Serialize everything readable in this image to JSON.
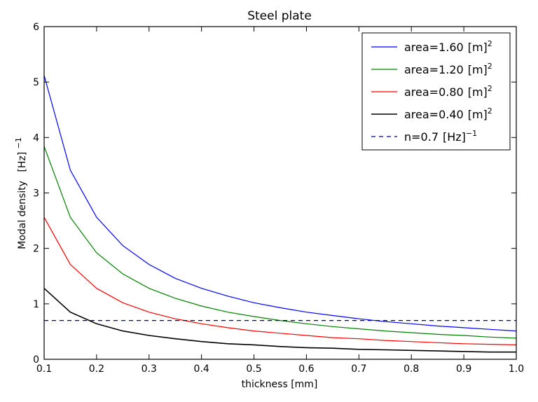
{
  "chart_data": {
    "type": "line",
    "title": "Steel plate",
    "xlabel": "thickness [mm]",
    "ylabel": "Modal density",
    "ylabel_unit": "[Hz]",
    "ylabel_unit_sup": "−1",
    "xlim": [
      0.1,
      1.0
    ],
    "ylim": [
      0,
      6
    ],
    "x_ticks": [
      "0.1",
      "0.2",
      "0.3",
      "0.4",
      "0.5",
      "0.6",
      "0.7",
      "0.8",
      "0.9",
      "1.0"
    ],
    "y_ticks": [
      "0",
      "1",
      "2",
      "3",
      "4",
      "5",
      "6"
    ],
    "grid": false,
    "legend_position": "top-right",
    "x": [
      0.1,
      0.15,
      0.2,
      0.25,
      0.3,
      0.35,
      0.4,
      0.45,
      0.5,
      0.55,
      0.6,
      0.65,
      0.7,
      0.75,
      0.8,
      0.85,
      0.9,
      0.95,
      1.0
    ],
    "series": [
      {
        "name": "area=1.60",
        "unit": "[m]",
        "unit_sup": "2",
        "color": "#0000ff",
        "style": "solid",
        "values": [
          5.12,
          3.41,
          2.56,
          2.05,
          1.71,
          1.46,
          1.28,
          1.14,
          1.02,
          0.93,
          0.85,
          0.79,
          0.73,
          0.68,
          0.64,
          0.6,
          0.57,
          0.54,
          0.51
        ]
      },
      {
        "name": "area=1.20",
        "unit": "[m]",
        "unit_sup": "2",
        "color": "#008000",
        "style": "solid",
        "values": [
          3.84,
          2.56,
          1.92,
          1.54,
          1.28,
          1.1,
          0.96,
          0.85,
          0.77,
          0.7,
          0.64,
          0.59,
          0.55,
          0.51,
          0.48,
          0.45,
          0.43,
          0.4,
          0.38
        ]
      },
      {
        "name": "area=0.80",
        "unit": "[m]",
        "unit_sup": "2",
        "color": "#ff0000",
        "style": "solid",
        "values": [
          2.56,
          1.71,
          1.28,
          1.02,
          0.85,
          0.73,
          0.64,
          0.57,
          0.51,
          0.47,
          0.43,
          0.39,
          0.37,
          0.34,
          0.32,
          0.3,
          0.28,
          0.27,
          0.26
        ]
      },
      {
        "name": "area=0.40",
        "unit": "[m]",
        "unit_sup": "2",
        "color": "#000000",
        "style": "solid",
        "values": [
          1.28,
          0.85,
          0.64,
          0.51,
          0.43,
          0.37,
          0.32,
          0.28,
          0.26,
          0.23,
          0.21,
          0.2,
          0.18,
          0.17,
          0.16,
          0.15,
          0.14,
          0.13,
          0.13
        ]
      },
      {
        "name": "n=0.7",
        "unit": "[Hz]",
        "unit_sup": "−1",
        "color": "#000080",
        "style": "dashed",
        "values": [
          0.7,
          0.7,
          0.7,
          0.7,
          0.7,
          0.7,
          0.7,
          0.7,
          0.7,
          0.7,
          0.7,
          0.7,
          0.7,
          0.7,
          0.7,
          0.7,
          0.7,
          0.7,
          0.7
        ]
      }
    ]
  }
}
